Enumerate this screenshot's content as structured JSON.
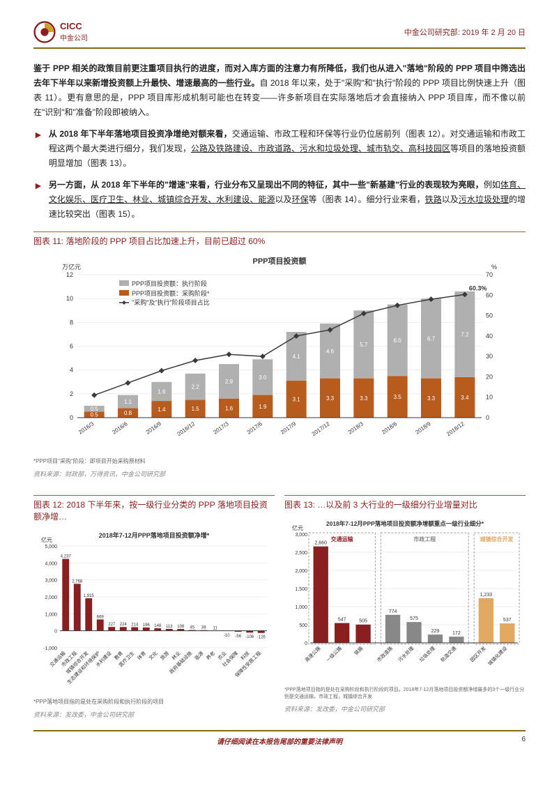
{
  "header": {
    "logo_cn": "中金公司",
    "logo_en": "CICC",
    "right": "中金公司研究部: 2019 年 2 月 20 日",
    "logo_color": "#8b1f1f",
    "brand_accent": "#c9a227"
  },
  "para1": "鉴于 PPP 相关的政策目前更注重项目执行的进度，而对入库方面的注意力有所降低，我们也从进入\"落地\"阶段的 PPP 项目中筛选出去年下半年以来新增投资额上升最快、增速最高的一些行业。",
  "para1b": "自 2018 年以来，处于\"采购\"和\"执行\"阶段的 PPP 项目比例快速上升（图表 11）。更有意思的是，PPP 项目库形成机制可能也在转变——许多新项目在实际落地后才会直接纳入 PPP 项目库，而不像以前在\"识别\"和\"准备\"阶段即被纳入。",
  "bullets": [
    {
      "bold": "从 2018 年下半年落地项目投资净增绝对额来看，",
      "rest": "交通运输、市政工程和环保等行业仍位居前列（图表 12）。对交通运输和市政工程这两个最大类进行细分，我们发现，",
      "ul": "公路及铁路建设、市政道路、污水和垃圾处理、城市轨交、高科技园区",
      "tail": "等项目的落地投资额明显增加（图表 13）。"
    },
    {
      "bold": "另一方面，从 2018 年下半年的\"增速\"来看，行业分布又呈现出不同的特征，其中一些\"新基建\"行业的表现较为亮眼，",
      "rest": "例如",
      "ul": "体育、文化娱乐、医疗卫生、林业、城镇综合开发、水利建设、能源",
      "tail1": "以及",
      "ul2": "环保",
      "tail2": "等（图表 14）。细分行业来看，",
      "ul3": "铁路",
      "tail3": "以及",
      "ul4": "污水垃圾处理",
      "tail4": "的增速比较突出（图表 15）。"
    }
  ],
  "chart11": {
    "title": "图表 11: 落地阶段的 PPP 项目占比加速上升，目前已超过 60%",
    "yl_label": "万亿元",
    "yr_label": "%",
    "main_title": "PPP项目投资额",
    "legend": {
      "exec": "PPP项目投资额：执行阶段",
      "purch": "PPP项目投资额：采购阶段*",
      "line": "\"采购\"及\"执行\"阶段项目占比"
    },
    "footnote": "*PPP项目\"采购\"阶段：即项目开始采购原材料",
    "source": "资料来源：财政部，万得资讯，中金公司研究部",
    "categories": [
      "2016/3",
      "2016/6",
      "2016/9",
      "2016/12",
      "2017/3",
      "2017/6",
      "2017/9",
      "2017/12",
      "2018/3",
      "2018/6",
      "2018/9",
      "2018/12"
    ],
    "exec_vals": [
      0.5,
      1.1,
      1.6,
      2.2,
      2.9,
      3.0,
      4.1,
      4.6,
      5.7,
      6.0,
      6.7,
      7.2
    ],
    "purch_vals": [
      0.5,
      0.8,
      1.4,
      1.5,
      1.6,
      1.9,
      3.1,
      3.3,
      3.3,
      3.5,
      3.3,
      3.4
    ],
    "line_vals": [
      11,
      17,
      23,
      28,
      31,
      30,
      40,
      43,
      51,
      55,
      58,
      60.3
    ],
    "exec_color": "#b0b0b0",
    "purch_color": "#b85c1e",
    "line_color": "#3a3a3a",
    "yl_max": 12,
    "yl_step": 2,
    "yr_max": 70,
    "yr_step": 10,
    "final_label": "60.3%",
    "bg": "#ffffff",
    "grid": "#dddddd"
  },
  "chart12": {
    "title": "图表 12: 2018 下半年来，按一级行业分类的 PPP 落地项目投资额净增…",
    "inner_title": "2018年7-12月PPP落地项目投资额净增*",
    "yl_label": "亿元",
    "footnote": "*PPP落地项目指的是处在采购阶段和执行阶段的项目",
    "source": "资料来源：发改委，中金公司研究部",
    "categories": [
      "交通运输",
      "市政工程",
      "城镇综合开发",
      "生态建设和环境保护",
      "水利建设",
      "教育",
      "医疗卫生",
      "体育",
      "文化",
      "旅游",
      "林业",
      "政府基础设施",
      "能源",
      "养老",
      "农业",
      "社会保障",
      "科技",
      "保障性安居工程"
    ],
    "values": [
      4237,
      2768,
      1915,
      669,
      227,
      224,
      214,
      196,
      148,
      113,
      108,
      45,
      38,
      11,
      -10,
      -56,
      -106,
      -126
    ],
    "bar_color": "#8b1f1f",
    "y_max": 5000,
    "y_min": -1000,
    "y_step": 1000
  },
  "chart13": {
    "title": "图表 13: …以及前 3 大行业的一级细分行业增量对比",
    "inner_title": "2018年7-12月PPP落地项目投资额净增额重点一级行业细分*",
    "yl_label": "亿元",
    "footnote": "*PPP落地项目指的是处在采购阶段和执行阶段的项目。2018年7-12月落地项目投资额净增最多的3个一级行业分别是交通运输，市政工程，城镇综合开发",
    "source": "资料来源：发改委，中金公司研究部",
    "groups": [
      {
        "name": "交通运输",
        "color": "#8b1f1f",
        "items": [
          {
            "l": "高速公路",
            "v": 2660
          },
          {
            "l": "一级公路",
            "v": 547
          },
          {
            "l": "铁路",
            "v": 505
          }
        ]
      },
      {
        "name": "市政工程",
        "color": "#888888",
        "items": [
          {
            "l": "市政道路",
            "v": 774
          },
          {
            "l": "污水处理",
            "v": 575
          },
          {
            "l": "垃圾处理",
            "v": 229
          },
          {
            "l": "轨道交通",
            "v": 172
          }
        ]
      },
      {
        "name": "城镇综合开发",
        "color": "#e0a860",
        "items": [
          {
            "l": "园区开发",
            "v": 1233
          },
          {
            "l": "城镇化建设",
            "v": 537
          }
        ]
      }
    ],
    "y_max": 3000,
    "y_step": 500
  },
  "footer": {
    "disclaimer": "请仔细阅读在本报告尾部的重要法律声明",
    "page": "6"
  }
}
